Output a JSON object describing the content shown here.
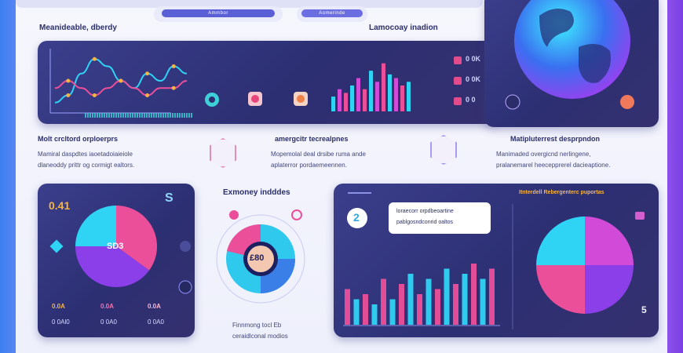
{
  "header": {
    "search_left_label": "Ammbor",
    "search_right_label": "Aomerinde"
  },
  "top_left_title": "Meanideable, dberdy",
  "top_right_title": "Lamocoay inadion",
  "kpis": [
    "0 0K",
    "0 0K",
    "0 0"
  ],
  "section_left": {
    "title": "Molt crcltord orploerprs",
    "desc1": "Mamiral daspdtes iaoetadoiaieiole",
    "desc2": "dlaneoddy prittr og cormigt ealtors."
  },
  "section_mid": {
    "title": "amergcitr tecrealpnes",
    "desc1": "Mopemolal deal drsibe ruma ande",
    "desc2": "aplaterror pordaemeennen."
  },
  "section_right": {
    "title": "Matipluterrest desprpndon",
    "desc1": "Manimaded overgicnd nerlingene,",
    "desc2": "pralanemarel heecepprerel dacieaptione."
  },
  "bottom_left": {
    "value_top": "0.41",
    "value_right": "S",
    "pie_center": "SD3",
    "stats": [
      "0.0A",
      "0.0A",
      "0.0A"
    ],
    "stats2": [
      "0 0Al0",
      "0 0A0",
      "0 0A0"
    ]
  },
  "center_donut": {
    "title": "Exmoney indddes",
    "center_value": "£80",
    "caption1": "Finnmong tocl Eb",
    "caption2": "ceraidlconal modios"
  },
  "bottom_right": {
    "badge": "2",
    "callout1": "loraecorr orpdbeoartine",
    "callout2": "pablgosndconrid oaltos",
    "right_title": "Itnterdell Rebergenterc puportas",
    "corner_value": "5"
  },
  "colors": {
    "panel": "#2f3278",
    "cyan": "#2fd4f5",
    "pink": "#ec4f9a",
    "purple": "#8b3fe8",
    "magenta": "#d24bd8"
  },
  "chart_data": [
    {
      "type": "line",
      "x": [
        0,
        1,
        2,
        3,
        4,
        5,
        6,
        7,
        8,
        9,
        10
      ],
      "series": [
        {
          "values": [
            1,
            2,
            5,
            7,
            6,
            4,
            3,
            5,
            4,
            6,
            5
          ]
        },
        {
          "values": [
            3,
            4,
            3,
            2,
            3,
            4,
            3,
            2,
            3,
            3,
            4
          ]
        }
      ]
    },
    {
      "type": "bar",
      "values": [
        4,
        6,
        5,
        7,
        9,
        6,
        11,
        8,
        13,
        10,
        9,
        7,
        8
      ]
    },
    {
      "type": "pie",
      "values": [
        35,
        40,
        25
      ]
    },
    {
      "type": "bar",
      "values": [
        7,
        5,
        6,
        4,
        9,
        5,
        8,
        10,
        6,
        9,
        7,
        11,
        8,
        10,
        12,
        9,
        11
      ]
    },
    {
      "type": "pie",
      "values": [
        25,
        25,
        25,
        25
      ]
    }
  ]
}
